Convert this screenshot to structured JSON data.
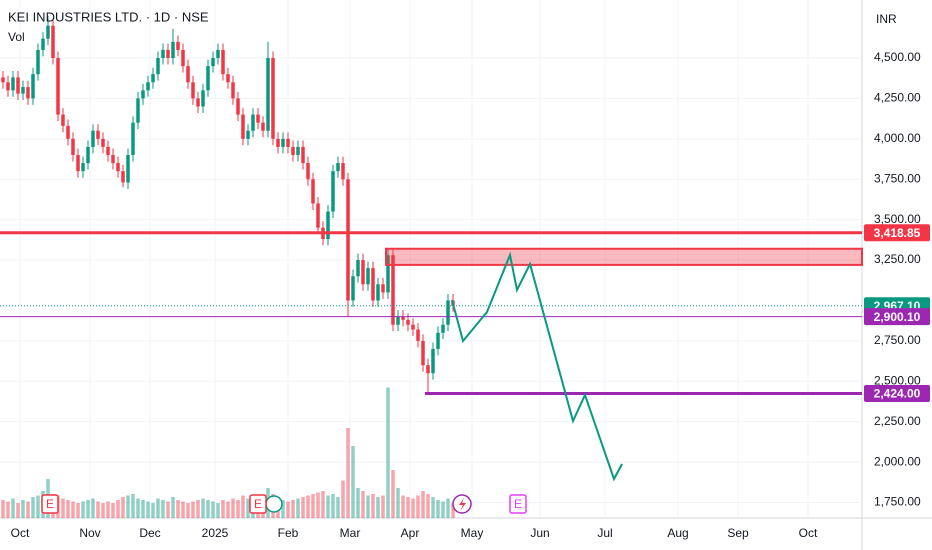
{
  "chart_data": {
    "type": "candlestick",
    "title": "KEI INDUSTRIES LTD. · 1D · NSE",
    "volume_label": "Vol",
    "currency": "INR",
    "up_color": "#089981",
    "down_color": "#f23645",
    "open": [
      4380,
      4350,
      4300,
      4380,
      4280,
      4320,
      4250,
      4400,
      4550,
      4620,
      4700,
      4500,
      4150,
      4080,
      4000,
      3900,
      3800,
      3850,
      3950,
      4050,
      4000,
      3950,
      3900,
      3850,
      3800,
      3730,
      3900,
      4100,
      4250,
      4300,
      4350,
      4400,
      4500,
      4550,
      4500,
      4600,
      4550,
      4450,
      4350,
      4250,
      4200,
      4300,
      4450,
      4500,
      4550,
      4400,
      4350,
      4250,
      4150,
      4000,
      4050,
      4150,
      4100,
      4050,
      4500,
      4000,
      3950,
      4000,
      3950,
      3900,
      3950,
      3850,
      3750,
      3600,
      3450,
      3380,
      3550,
      3800,
      3850,
      3750,
      3000,
      3150,
      3250,
      3100,
      3200,
      3000,
      3100,
      3050,
      3280,
      2850,
      2900,
      2880,
      2850,
      2820,
      2750,
      2600,
      2550,
      2700,
      2800,
      2850,
      3000
    ],
    "high": [
      4420,
      4390,
      4420,
      4420,
      4360,
      4360,
      4440,
      4590,
      4660,
      4760,
      4740,
      4540,
      4190,
      4120,
      4040,
      3940,
      3890,
      3990,
      4090,
      4090,
      4040,
      3990,
      3940,
      3890,
      3840,
      3940,
      4140,
      4290,
      4340,
      4390,
      4440,
      4540,
      4590,
      4590,
      4680,
      4640,
      4590,
      4490,
      4390,
      4290,
      4340,
      4490,
      4540,
      4590,
      4590,
      4440,
      4390,
      4290,
      4190,
      4090,
      4190,
      4190,
      4140,
      4600,
      4540,
      4040,
      4040,
      4040,
      3990,
      3990,
      3990,
      3890,
      3790,
      3640,
      3490,
      3590,
      3840,
      3890,
      3890,
      3790,
      3190,
      3290,
      3290,
      3240,
      3240,
      3140,
      3140,
      3320,
      3320,
      2940,
      2940,
      2920,
      2890,
      2860,
      2790,
      2640,
      2740,
      2840,
      2890,
      3040,
      3040
    ],
    "low": [
      4310,
      4260,
      4260,
      4240,
      4240,
      4210,
      4210,
      4360,
      4510,
      4580,
      4460,
      4110,
      4040,
      3960,
      3860,
      3760,
      3760,
      3810,
      3910,
      3960,
      3910,
      3860,
      3810,
      3760,
      3700,
      3690,
      3860,
      4060,
      4210,
      4260,
      4310,
      4360,
      4460,
      4460,
      4460,
      4510,
      4410,
      4310,
      4210,
      4160,
      4160,
      4260,
      4410,
      4460,
      4360,
      4310,
      4210,
      4110,
      3960,
      3960,
      4010,
      4060,
      4010,
      4010,
      3960,
      3910,
      3910,
      3910,
      3860,
      3860,
      3810,
      3710,
      3560,
      3410,
      3340,
      3340,
      3510,
      3760,
      3710,
      2900,
      2960,
      3110,
      3060,
      3060,
      2960,
      2960,
      3010,
      3010,
      2810,
      2810,
      2840,
      2810,
      2780,
      2710,
      2560,
      2424,
      2510,
      2660,
      2760,
      2810,
      2930
    ],
    "close": [
      4350,
      4300,
      4380,
      4280,
      4320,
      4250,
      4400,
      4550,
      4620,
      4700,
      4500,
      4150,
      4080,
      4000,
      3900,
      3800,
      3850,
      3950,
      4050,
      4000,
      3950,
      3900,
      3850,
      3800,
      3730,
      3900,
      4100,
      4250,
      4300,
      4350,
      4400,
      4500,
      4550,
      4500,
      4600,
      4550,
      4450,
      4350,
      4250,
      4200,
      4300,
      4450,
      4500,
      4550,
      4400,
      4350,
      4250,
      4150,
      4000,
      4050,
      4150,
      4100,
      4050,
      4500,
      4000,
      3950,
      4000,
      3950,
      3900,
      3950,
      3850,
      3750,
      3600,
      3450,
      3380,
      3550,
      3800,
      3850,
      3750,
      3000,
      3150,
      3250,
      3100,
      3200,
      3000,
      3100,
      3050,
      3280,
      2850,
      2900,
      2880,
      2850,
      2820,
      2750,
      2600,
      2550,
      2700,
      2800,
      2850,
      3000,
      2967.1
    ],
    "volume": [
      120,
      110,
      130,
      100,
      120,
      110,
      140,
      150,
      180,
      260,
      160,
      150,
      130,
      120,
      110,
      100,
      110,
      120,
      130,
      110,
      100,
      110,
      100,
      120,
      140,
      150,
      160,
      130,
      120,
      110,
      100,
      130,
      120,
      110,
      140,
      120,
      110,
      100,
      110,
      120,
      130,
      120,
      110,
      100,
      120,
      110,
      130,
      120,
      150,
      130,
      120,
      140,
      130,
      200,
      160,
      140,
      120,
      110,
      120,
      130,
      140,
      150,
      160,
      170,
      180,
      150,
      160,
      140,
      250,
      600,
      480,
      200,
      180,
      150,
      160,
      140,
      150,
      870,
      320,
      200,
      150,
      140,
      130,
      150,
      180,
      160,
      140,
      120,
      110,
      130,
      100
    ],
    "vlim": [
      0,
      1000
    ],
    "xlim": [
      -0.6,
      171.8
    ],
    "xticks": [
      {
        "value": 3.4,
        "label": "Oct"
      },
      {
        "value": 17.4,
        "label": "Nov"
      },
      {
        "value": 29.4,
        "label": "Dec"
      },
      {
        "value": 42.4,
        "label": "2025"
      },
      {
        "value": 57,
        "label": "Feb"
      },
      {
        "value": 69.4,
        "label": "Mar"
      },
      {
        "value": 81.4,
        "label": "Apr"
      },
      {
        "value": 93.8,
        "label": "May"
      },
      {
        "value": 107.4,
        "label": "Jun"
      },
      {
        "value": 120.4,
        "label": "Jul"
      },
      {
        "value": 135,
        "label": "Aug"
      },
      {
        "value": 147,
        "label": "Sep"
      },
      {
        "value": 161,
        "label": "Oct"
      }
    ],
    "ylim": [
      1654,
      4859
    ],
    "yticks": [
      {
        "value": 1750,
        "label": "1,750.00"
      },
      {
        "value": 2000,
        "label": "2,000.00"
      },
      {
        "value": 2250,
        "label": "2,250.00"
      },
      {
        "value": 2500,
        "label": "2,500.00"
      },
      {
        "value": 2750,
        "label": "2,750.00"
      },
      {
        "value": 3250,
        "label": "3,250.00"
      },
      {
        "value": 3500,
        "label": "3,500.00"
      },
      {
        "value": 3750,
        "label": "3,750.00"
      },
      {
        "value": 4000,
        "label": "4,000.00"
      },
      {
        "value": 4250,
        "label": "4,250.00"
      },
      {
        "value": 4500,
        "label": "4,500.00"
      }
    ],
    "grid": true,
    "levels": [
      {
        "value": 3418.85,
        "label": "3,418.85",
        "color": "#f23645",
        "width": 3
      },
      {
        "value": 2967.1,
        "label": "2,967.10",
        "color": "#089981",
        "width": 1,
        "dotted": true
      },
      {
        "value": 2900.1,
        "label": "2,900.10",
        "color": "#9c27b0",
        "width": 1
      },
      {
        "value": 2424,
        "label": "2,424.00",
        "color": "#9c27b0",
        "width": 3,
        "x_from": 84.4
      }
    ],
    "zone": {
      "low": 3220,
      "high": 3320,
      "x_from": 76.6,
      "color": "#f23645"
    },
    "events": [
      {
        "value": 9.4,
        "label": "E",
        "color": "#f23645"
      },
      {
        "value": 51,
        "label": "E",
        "color": "#f23645"
      },
      {
        "value": 103,
        "label": "E",
        "color": "#e040fb"
      }
    ]
  }
}
